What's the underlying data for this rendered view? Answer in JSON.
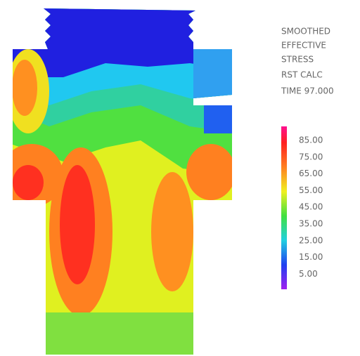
{
  "legend": {
    "title_lines": [
      "SMOOTHED",
      "EFFECTIVE",
      "STRESS",
      "RST CALC",
      "TIME 97.000"
    ],
    "ticks": [
      "85.00",
      "75.00",
      "65.00",
      "55.00",
      "45.00",
      "35.00",
      "25.00",
      "15.00",
      "5.00"
    ]
  }
}
